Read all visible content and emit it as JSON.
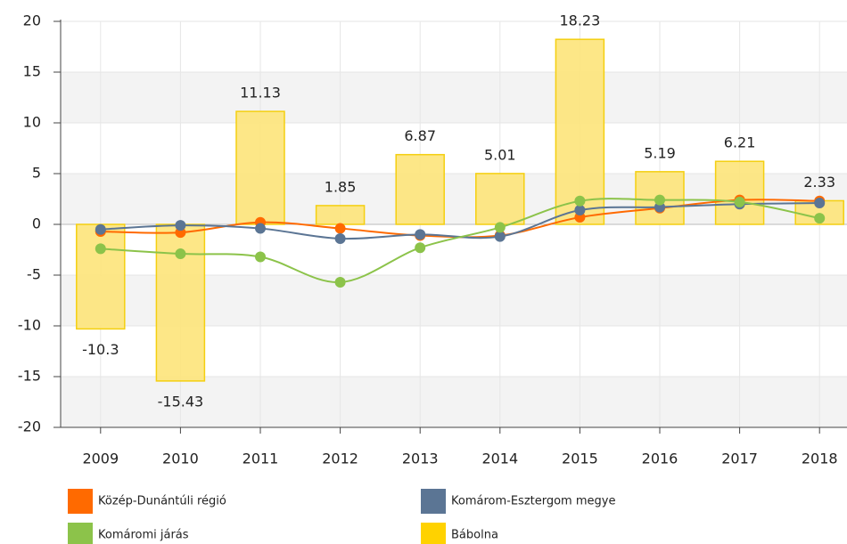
{
  "chart_data": {
    "type": "combo",
    "categories": [
      "2009",
      "2010",
      "2011",
      "2012",
      "2013",
      "2014",
      "2015",
      "2016",
      "2017",
      "2018"
    ],
    "ylim": [
      -20,
      20
    ],
    "yticks": [
      -20,
      -15,
      -10,
      -5,
      0,
      5,
      10,
      15,
      20
    ],
    "grid": true,
    "legend": "bottom",
    "series": [
      {
        "name": "Bábolna",
        "type": "bar",
        "color": "#fde47a",
        "values": [
          -10.3,
          -15.43,
          11.13,
          1.85,
          6.87,
          5.01,
          18.23,
          5.19,
          6.21,
          2.33
        ]
      },
      {
        "name": "Közép-Dunántúli régió",
        "type": "line",
        "color": "#ff6a00",
        "values": [
          -0.7,
          -0.8,
          0.2,
          -0.4,
          -1.1,
          -1.1,
          0.7,
          1.6,
          2.4,
          2.3
        ]
      },
      {
        "name": "Komárom-Esztergom megye",
        "type": "line",
        "color": "#5b7594",
        "values": [
          -0.5,
          -0.1,
          -0.4,
          -1.4,
          -1.0,
          -1.2,
          1.4,
          1.7,
          2.0,
          2.1
        ]
      },
      {
        "name": "Komáromi járás",
        "type": "line",
        "color": "#8cc34a",
        "values": [
          -2.4,
          -2.9,
          -3.2,
          -5.7,
          -2.3,
          -0.3,
          2.3,
          2.4,
          2.2,
          0.6
        ]
      }
    ]
  }
}
